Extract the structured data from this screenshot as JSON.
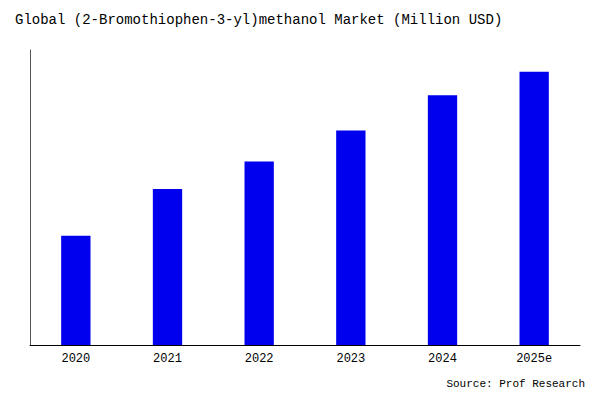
{
  "chart_data": {
    "type": "bar",
    "title": "Global (2-Bromothiophen-3-yl)methanol Market (Million USD)",
    "categories": [
      "2020",
      "2021",
      "2022",
      "2023",
      "2024",
      "2025e"
    ],
    "values": [
      28,
      40,
      47,
      55,
      64,
      70
    ],
    "color": "#0000EE",
    "ylim": [
      0,
      75.6
    ],
    "grid": false,
    "tick_labels": "x",
    "annotation": "Source: Prof Research"
  }
}
